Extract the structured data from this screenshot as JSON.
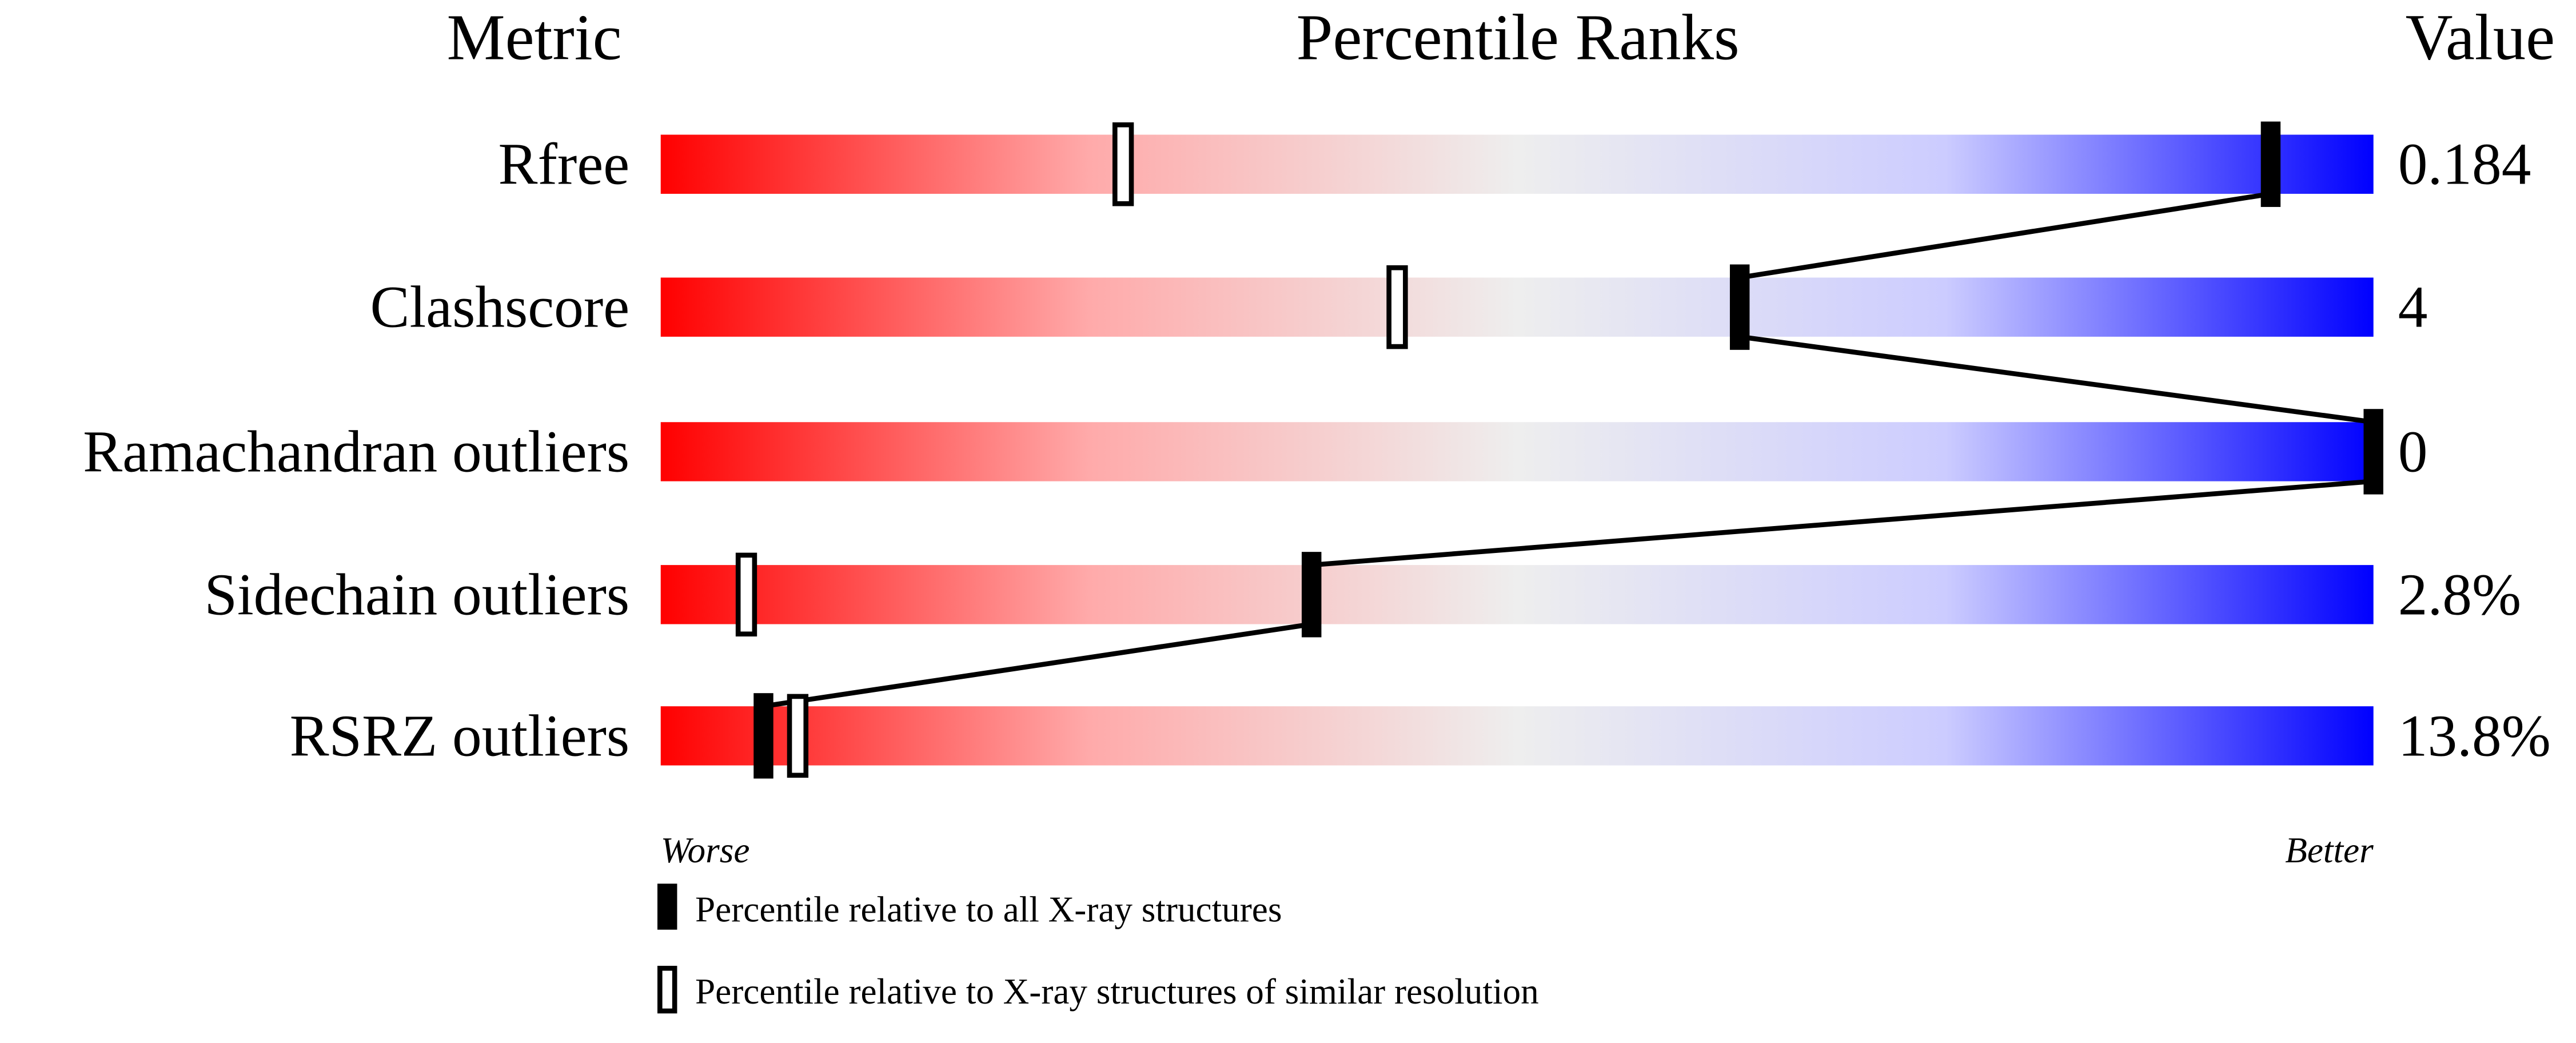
{
  "chart_data": {
    "type": "percentile-slider",
    "headers": {
      "metric": "Metric",
      "ranks": "Percentile Ranks",
      "value": "Value"
    },
    "xlim": [
      0,
      100
    ],
    "axis_labels": {
      "left": "Worse",
      "right": "Better"
    },
    "gradient_colors": [
      "#ff0000",
      "#eeeeee",
      "#0000ff"
    ],
    "metrics": [
      {
        "name": "Rfree",
        "value": "0.184",
        "percentile_all": 94,
        "percentile_similar": 27
      },
      {
        "name": "Clashscore",
        "value": "4",
        "percentile_all": 63,
        "percentile_similar": 43
      },
      {
        "name": "Ramachandran outliers",
        "value": "0",
        "percentile_all": 100,
        "percentile_similar": null
      },
      {
        "name": "Sidechain outliers",
        "value": "2.8%",
        "percentile_all": 38,
        "percentile_similar": 5
      },
      {
        "name": "RSRZ outliers",
        "value": "13.8%",
        "percentile_all": 6,
        "percentile_similar": 8
      }
    ],
    "legend": [
      {
        "marker": "filled",
        "label": "Percentile relative to all X-ray structures"
      },
      {
        "marker": "open",
        "label": "Percentile relative to X-ray structures of similar resolution"
      }
    ]
  }
}
